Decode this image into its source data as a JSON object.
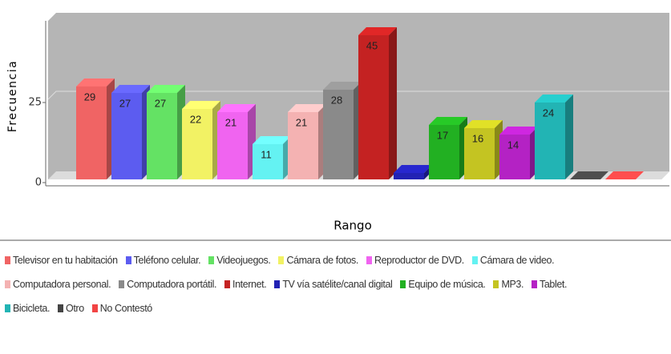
{
  "chart_data": {
    "type": "bar3d",
    "x_label": "Rango",
    "y_label": "Frecuencia",
    "categories": [
      "Televisor en tu habitación",
      "Teléfono celular.",
      "Videojuegos.",
      "Cámara de fotos.",
      "Reproductor de DVD.",
      "Cámara de video.",
      "Computadora personal.",
      "Computadora portátil.",
      "Internet.",
      "TV vía satélite/canal digital",
      "Equipo de música.",
      "MP3.",
      "Tablet.",
      "Bicicleta.",
      "Otro",
      "No Contestó"
    ],
    "values": [
      29,
      27,
      27,
      22,
      21,
      11,
      21,
      28,
      45,
      2,
      17,
      16,
      14,
      24,
      0,
      0
    ],
    "value_labels": [
      "29",
      "27",
      "27",
      "22",
      "21",
      "11",
      "21",
      "28",
      "45",
      null,
      "17",
      "16",
      "14",
      "24",
      null,
      null
    ],
    "colors": [
      "#f06464",
      "#5c5cf0",
      "#64e264",
      "#f2f264",
      "#f064f0",
      "#64f2f2",
      "#f4b2b2",
      "#8a8a8a",
      "#c42222",
      "#2222b4",
      "#22b022",
      "#c4c422",
      "#b422c4",
      "#22b4b4",
      "#444444",
      "#f24444"
    ],
    "ylim": [
      0,
      52
    ],
    "yticks": [
      0,
      25
    ],
    "grid": true,
    "legend": "bottom"
  }
}
